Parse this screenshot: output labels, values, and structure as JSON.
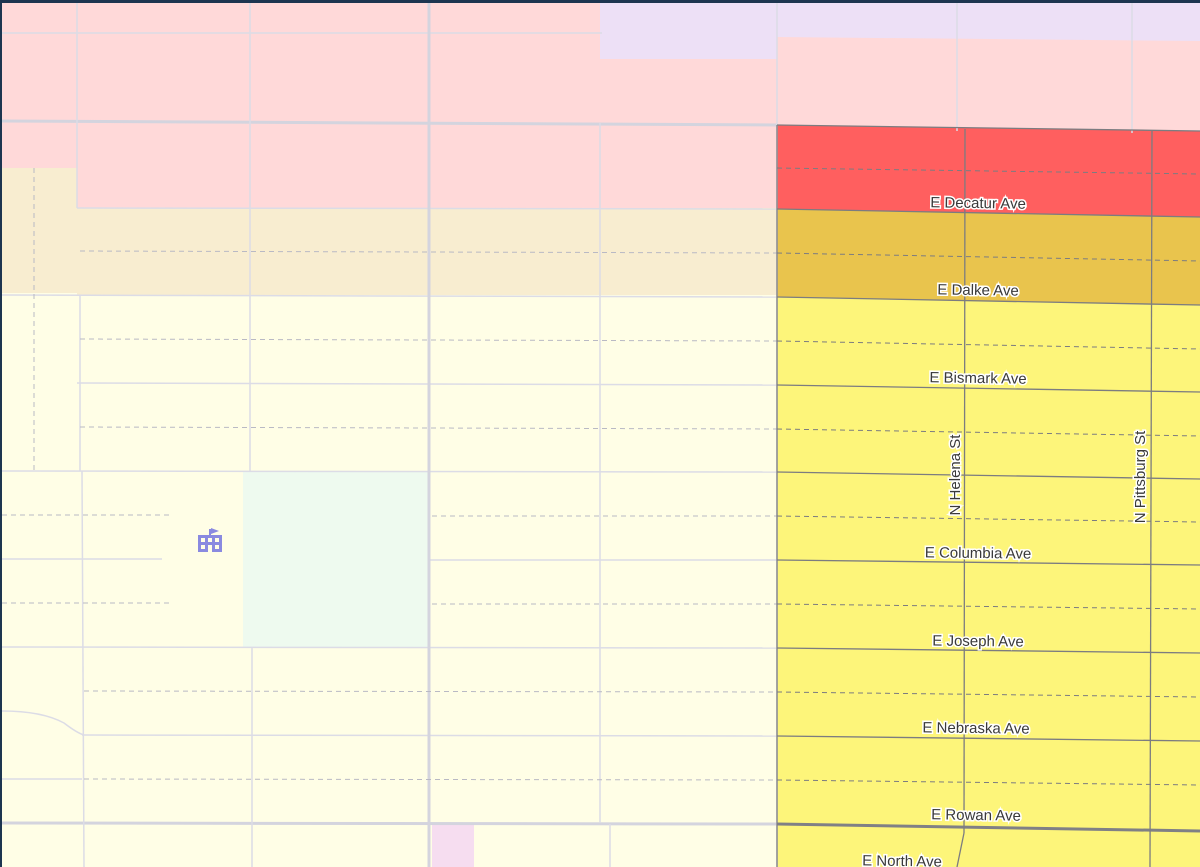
{
  "map": {
    "streets": {
      "decatur": "E Decatur Ave",
      "dalke": "E Dalke Ave",
      "bismark": "E Bismark Ave",
      "columbia": "E Columbia Ave",
      "joseph": "E Joseph Ave",
      "nebraska": "E Nebraska Ave",
      "rowan": "E Rowan Ave",
      "north": "E North Ave",
      "helena": "N Helena St",
      "pittsburg": "N Pittsburg St"
    },
    "icons": {
      "school": "school-icon"
    },
    "colors": {
      "background": "#fffee6",
      "commercial_light": "#ffd9d9",
      "commercial_dark": "#ff5f5f",
      "purple_zone": "#ede0f6",
      "tan_zone": "#f8edd0",
      "mustard_zone": "#e9c44d",
      "residential_yellow": "#fdf57a",
      "park": "#eefaef",
      "school_icon": "#8a8ae0",
      "frame": "#1d3550"
    }
  }
}
